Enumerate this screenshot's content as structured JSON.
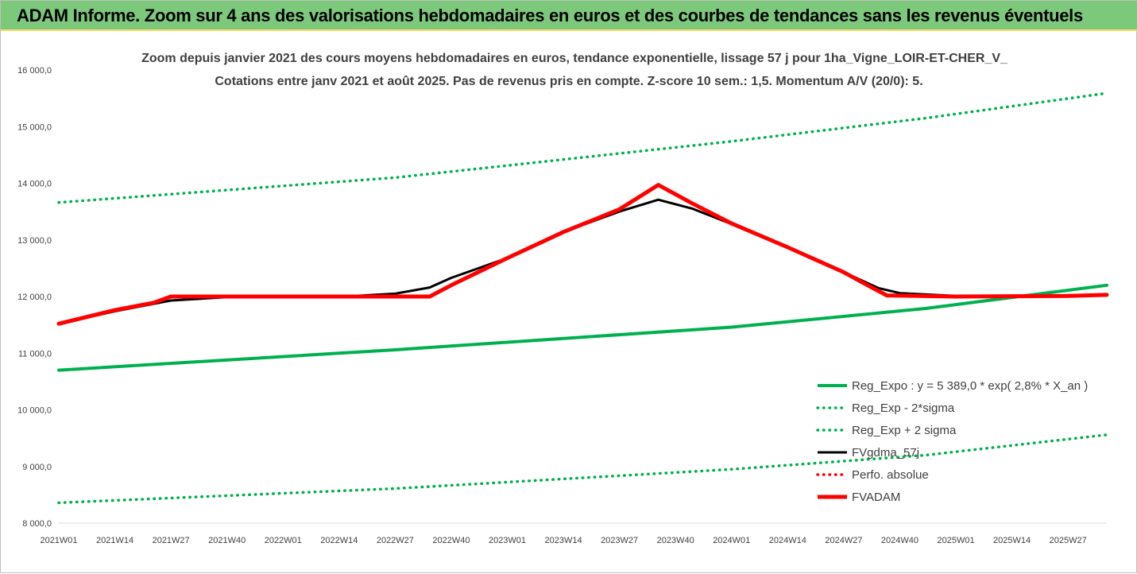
{
  "header": {
    "title": "ADAM Informe. Zoom sur 4 ans des valorisations hebdomadaires en euros et des courbes de tendances sans les revenus éventuels"
  },
  "colors": {
    "header_bg": "#7dc97b",
    "header_border": "#ffd966",
    "green": "#00b050",
    "black": "#000000",
    "red": "#ff0000",
    "text": "#404040"
  },
  "chart_data": {
    "type": "line",
    "title_lines": [
      "Zoom depuis janvier 2021 des cours moyens hebdomadaires en euros, tendance exponentielle, lissage 57 j pour 1ha_Vigne_LOIR-ET-CHER_V_",
      "Cotations entre janv 2021 et août 2025.  Pas de revenus pris en compte. Z-score 10 sem.: 1,5. Momentum A/V (20/0): 5."
    ],
    "ylim": [
      8000,
      16000
    ],
    "y_ticks": [
      "8 000,0",
      "9 000,0",
      "10 000,0",
      "11 000,0",
      "12 000,0",
      "13 000,0",
      "14 000,0",
      "15 000,0",
      "16 000,0"
    ],
    "x_tick_labels": [
      "2021W01",
      "2021W14",
      "2021W27",
      "2021W40",
      "2022W01",
      "2022W14",
      "2022W27",
      "2022W40",
      "2023W01",
      "2023W14",
      "2023W27",
      "2023W40",
      "2024W01",
      "2024W14",
      "2024W27",
      "2024W40",
      "2025W01",
      "2025W14",
      "2025W27"
    ],
    "x_range_weeks": [
      0,
      243
    ],
    "grid": false,
    "legend_position": "bottom-right",
    "series": [
      {
        "name": "Reg_Expo : y = 5 389,0 * exp( 2,8% *  X_an )",
        "style": "solid-thick",
        "color": "#00b050",
        "points": [
          [
            0,
            10700
          ],
          [
            78,
            11060
          ],
          [
            156,
            11460
          ],
          [
            201,
            11790
          ],
          [
            243,
            12200
          ]
        ]
      },
      {
        "name": "Reg_Exp - 2*sigma",
        "style": "dotted",
        "color": "#00b050",
        "points": [
          [
            0,
            8360
          ],
          [
            78,
            8610
          ],
          [
            156,
            8950
          ],
          [
            201,
            9200
          ],
          [
            243,
            9560
          ]
        ]
      },
      {
        "name": "Reg_Exp + 2 sigma",
        "style": "dotted",
        "color": "#00b050",
        "points": [
          [
            0,
            13660
          ],
          [
            78,
            14100
          ],
          [
            156,
            14740
          ],
          [
            201,
            15150
          ],
          [
            243,
            15590
          ]
        ]
      },
      {
        "name": "FVgdma_57j",
        "style": "solid",
        "color": "#000000",
        "points": [
          [
            0,
            11520
          ],
          [
            13,
            11740
          ],
          [
            26,
            11930
          ],
          [
            39,
            11990
          ],
          [
            52,
            12000
          ],
          [
            65,
            11995
          ],
          [
            78,
            12050
          ],
          [
            86,
            12160
          ],
          [
            91,
            12330
          ],
          [
            104,
            12680
          ],
          [
            117,
            13140
          ],
          [
            130,
            13500
          ],
          [
            139,
            13710
          ],
          [
            147,
            13550
          ],
          [
            156,
            13280
          ],
          [
            169,
            12870
          ],
          [
            182,
            12430
          ],
          [
            190,
            12150
          ],
          [
            195,
            12060
          ],
          [
            208,
            12010
          ],
          [
            221,
            12000
          ],
          [
            234,
            12010
          ],
          [
            243,
            12030
          ]
        ]
      },
      {
        "name": "Perfo. absolue",
        "style": "dotted",
        "color": "#ff0000",
        "points": []
      },
      {
        "name": "FVADAM",
        "style": "solid-thick",
        "color": "#ff0000",
        "points": [
          [
            0,
            11520
          ],
          [
            13,
            11760
          ],
          [
            22,
            11890
          ],
          [
            26,
            12000
          ],
          [
            52,
            12000
          ],
          [
            78,
            12000
          ],
          [
            86,
            12000
          ],
          [
            91,
            12200
          ],
          [
            104,
            12680
          ],
          [
            117,
            13140
          ],
          [
            130,
            13540
          ],
          [
            139,
            13970
          ],
          [
            147,
            13640
          ],
          [
            156,
            13290
          ],
          [
            169,
            12870
          ],
          [
            182,
            12430
          ],
          [
            188,
            12180
          ],
          [
            192,
            12020
          ],
          [
            208,
            12000
          ],
          [
            234,
            12010
          ],
          [
            243,
            12030
          ]
        ]
      }
    ]
  }
}
